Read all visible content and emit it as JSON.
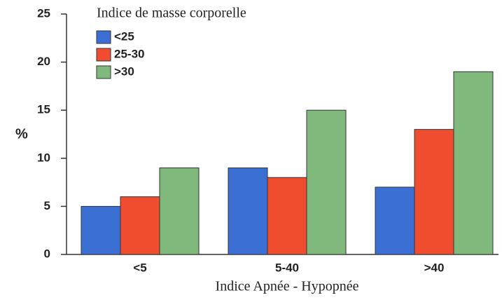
{
  "chart_data": {
    "type": "bar",
    "legend_title": "Indice de masse corporelle",
    "xlabel": "Indice Apnée - Hypopnée",
    "ylabel": "%",
    "categories": [
      "<5",
      "5-40",
      ">40"
    ],
    "series": [
      {
        "name": "<25",
        "color": "#3b6fd4",
        "values": [
          5,
          9,
          7
        ]
      },
      {
        "name": "25-30",
        "color": "#f04c30",
        "values": [
          6,
          8,
          13
        ]
      },
      {
        "name": ">30",
        "color": "#7fba7c",
        "values": [
          9,
          15,
          19
        ]
      }
    ],
    "ylim": [
      0,
      25
    ],
    "yticks": [
      0,
      5,
      10,
      15,
      20,
      25
    ],
    "legend": "upper left"
  }
}
